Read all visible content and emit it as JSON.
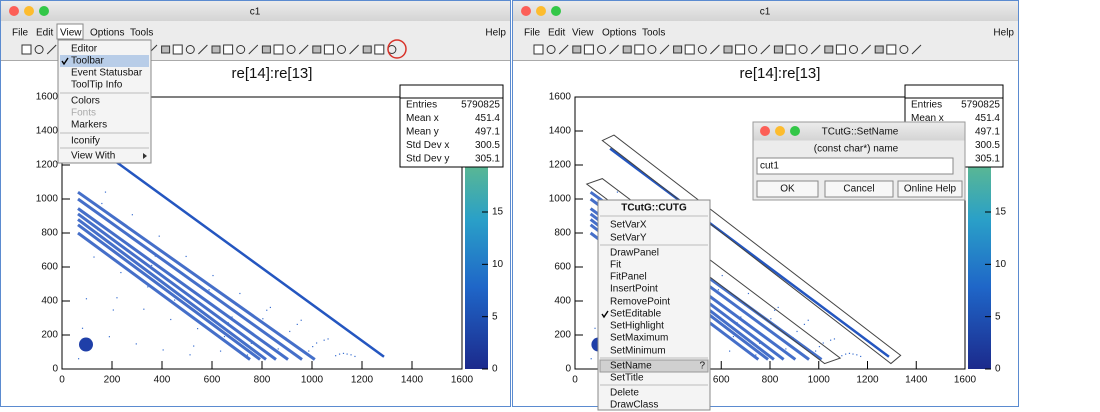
{
  "windows": [
    {
      "title": "c1",
      "menu": [
        "File",
        "Edit",
        "View",
        "Options",
        "Tools"
      ],
      "help": "Help",
      "plot": {
        "title": "re[14]:re[13]",
        "stats": [
          {
            "label": "Entries",
            "value": 5790825
          },
          {
            "label": "Mean x",
            "value": 451.4
          },
          {
            "label": "Mean y",
            "value": 497.1
          },
          {
            "label": "Std Dev x",
            "value": 300.5
          },
          {
            "label": "Std Dev y",
            "value": 305.1
          }
        ],
        "xticks": [
          0,
          200,
          400,
          600,
          800,
          1000,
          1200,
          1400,
          1600
        ],
        "yticks": [
          0,
          200,
          400,
          600,
          800,
          1000,
          1200,
          1400,
          1600
        ],
        "zticks": [
          0,
          5,
          10,
          15
        ]
      },
      "view_menu": [
        "Editor",
        "Toolbar",
        "Event Statusbar",
        "ToolTip Info",
        "Colors",
        "Fonts",
        "Markers",
        "Iconify",
        "View With"
      ]
    },
    {
      "title": "c1",
      "menu": [
        "File",
        "Edit",
        "View",
        "Options",
        "Tools"
      ],
      "help": "Help",
      "plot": {
        "title": "re[14]:re[13]",
        "stats": [
          {
            "label": "Entries",
            "value": 5790825
          },
          {
            "label": "Mean x",
            "value": 451.4
          },
          {
            "label": "Mean y",
            "value": 497.1
          },
          {
            "label": "Std Dev x",
            "value": 300.5
          },
          {
            "label": "Std Dev y",
            "value": 305.1
          }
        ],
        "xticks": [
          0,
          200,
          400,
          600,
          800,
          1000,
          1200,
          1400,
          1600
        ],
        "yticks": [
          0,
          200,
          400,
          600,
          800,
          1000,
          1200,
          1400,
          1600
        ],
        "zticks": [
          0,
          5,
          10,
          15
        ]
      },
      "context_menu": {
        "title": "TCutG::CUTG",
        "items": [
          "SetVarX",
          "SetVarY",
          "DrawPanel",
          "Fit",
          "FitPanel",
          "InsertPoint",
          "RemovePoint",
          "SetEditable",
          "SetHighlight",
          "SetMaximum",
          "SetMinimum",
          "SetName",
          "SetTitle",
          "Delete",
          "DrawClass"
        ],
        "shortcut": "?"
      },
      "dialog": {
        "title": "TCutG::SetName",
        "prompt": "(const char*)  name",
        "input": "cut1",
        "buttons": [
          "OK",
          "Cancel",
          "Online Help"
        ]
      }
    }
  ]
}
